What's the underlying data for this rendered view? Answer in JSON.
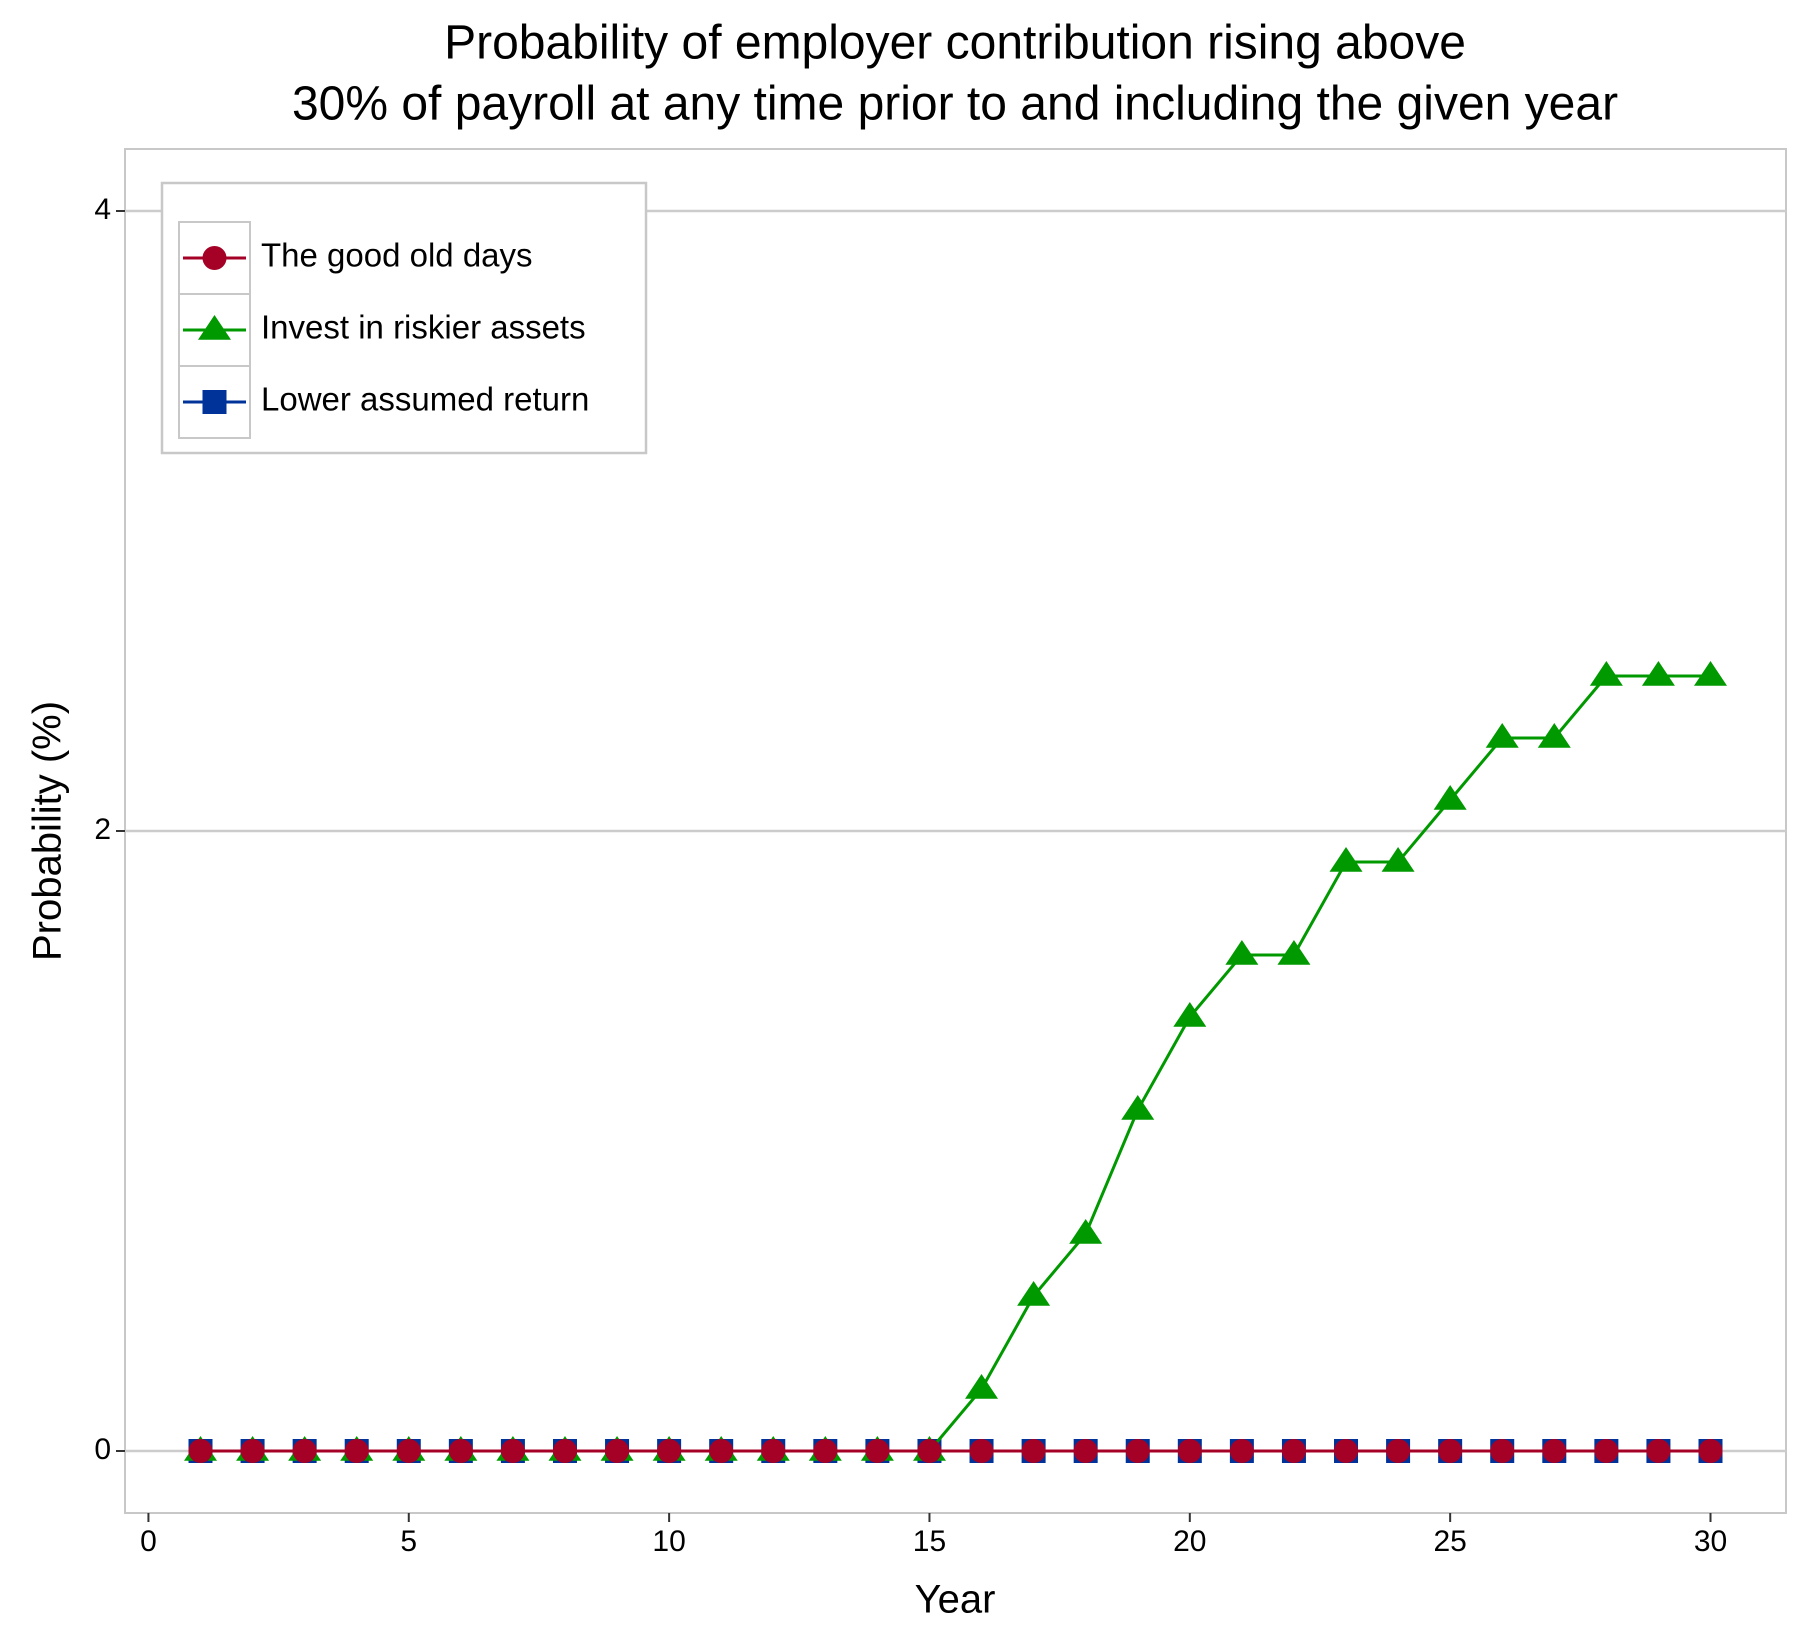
{
  "chart_data": {
    "type": "line",
    "title": [
      "Probability of employer contribution rising above",
      "30% of payroll at any time prior to and including the given year"
    ],
    "x_label": "Year",
    "y_label": "Probability (%)",
    "x": [
      1,
      2,
      3,
      4,
      5,
      6,
      7,
      8,
      9,
      10,
      11,
      12,
      13,
      14,
      15,
      16,
      17,
      18,
      19,
      20,
      21,
      22,
      23,
      24,
      25,
      26,
      27,
      28,
      29,
      30
    ],
    "series": [
      {
        "name": "Lower assumed return",
        "color": "#003399",
        "marker": "square",
        "values": [
          0,
          0,
          0,
          0,
          0,
          0,
          0,
          0,
          0,
          0,
          0,
          0,
          0,
          0,
          0,
          0,
          0,
          0,
          0,
          0,
          0,
          0,
          0,
          0,
          0,
          0,
          0,
          0,
          0,
          0
        ]
      },
      {
        "name": "Invest in riskier assets",
        "color": "#009900",
        "marker": "triangle",
        "values": [
          0,
          0,
          0,
          0,
          0,
          0,
          0,
          0,
          0,
          0,
          0,
          0,
          0,
          0,
          0,
          0.2,
          0.5,
          0.7,
          1.1,
          1.4,
          1.6,
          1.6,
          1.9,
          1.9,
          2.1,
          2.3,
          2.3,
          2.5,
          2.5,
          2.5
        ]
      },
      {
        "name": "The good old days",
        "color": "#a50026",
        "marker": "circle",
        "values": [
          0,
          0,
          0,
          0,
          0,
          0,
          0,
          0,
          0,
          0,
          0,
          0,
          0,
          0,
          0,
          0,
          0,
          0,
          0,
          0,
          0,
          0,
          0,
          0,
          0,
          0,
          0,
          0,
          0,
          0
        ]
      }
    ],
    "legend_order": [
      2,
      1,
      0
    ],
    "xlim": [
      -0.45,
      31.45
    ],
    "ylim": [
      -0.2,
      4.2
    ],
    "xticks": [
      0,
      5,
      10,
      15,
      20,
      25,
      30
    ],
    "yticks": [
      0,
      2,
      4
    ],
    "grid": "y",
    "legend_position": "top-left"
  }
}
